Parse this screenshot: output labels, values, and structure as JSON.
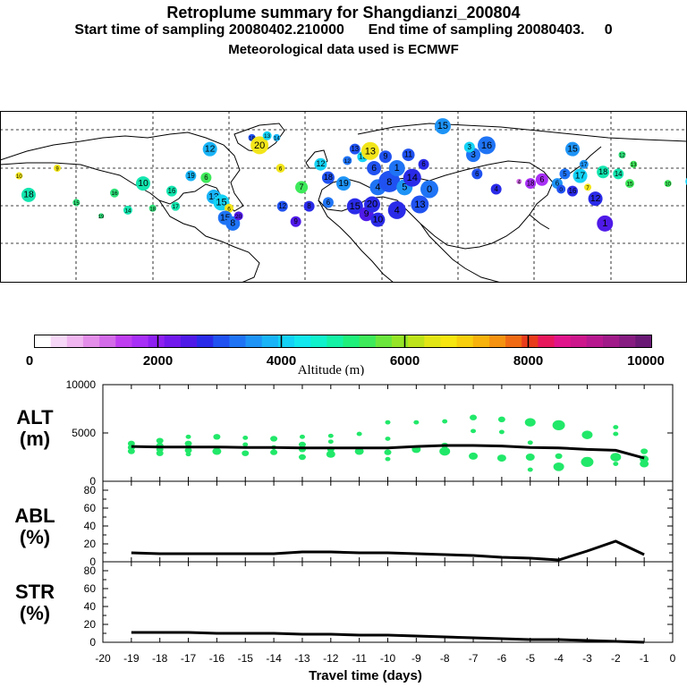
{
  "header": {
    "title": "Retroplume summary for Shangdianzi_200804",
    "start_label": "Start time of sampling",
    "start_value": "20080402.210000",
    "end_label": "End time of sampling",
    "end_value": "20080403.",
    "end_hour": "0",
    "met_label": "Meteorological data used is ECMWF"
  },
  "colorbar": {
    "title": "Altitude (m)",
    "ticks": [
      "0",
      "2000",
      "4000",
      "6000",
      "8000",
      "10000"
    ],
    "colors": [
      "#ffffff",
      "#f7d7f7",
      "#efb6ef",
      "#e38ee8",
      "#d36ae8",
      "#bf3ff0",
      "#a82ff5",
      "#8e20f2",
      "#7219ee",
      "#4f1ae8",
      "#2a2be8",
      "#1f52f0",
      "#1f74f5",
      "#1f94f7",
      "#18b4f7",
      "#14d2f5",
      "#12e8ee",
      "#0ff2cc",
      "#14f2a6",
      "#1ff07c",
      "#3ee95a",
      "#6ae63c",
      "#96e427",
      "#bfe31a",
      "#e2e516",
      "#f7e610",
      "#f7cf0c",
      "#f7b30c",
      "#f5920f",
      "#f06a14",
      "#e83c1c",
      "#e8185c",
      "#e0158c",
      "#cc168c",
      "#b8188f",
      "#a01a8a",
      "#861c82",
      "#6a1a74"
    ]
  },
  "map_data": {
    "points": [
      {
        "lon": -170,
        "lat": 56,
        "v": "10",
        "c": "#f2e61a",
        "r": 4
      },
      {
        "lon": -165,
        "lat": 46,
        "v": "18",
        "c": "#14e6b0",
        "r": 8
      },
      {
        "lon": -150,
        "lat": 60,
        "v": "9",
        "c": "#f2e61a",
        "r": 4
      },
      {
        "lon": -140,
        "lat": 42,
        "v": "15",
        "c": "#2ee37a",
        "r": 4
      },
      {
        "lon": -127,
        "lat": 35,
        "v": "19",
        "c": "#2ee37a",
        "r": 3
      },
      {
        "lon": -120,
        "lat": 47,
        "v": "16",
        "c": "#2ee37a",
        "r": 5
      },
      {
        "lon": -113,
        "lat": 38,
        "v": "14",
        "c": "#14e6b0",
        "r": 5
      },
      {
        "lon": -105,
        "lat": 52,
        "v": "10",
        "c": "#14e6b0",
        "r": 8
      },
      {
        "lon": -100,
        "lat": 39,
        "v": "18",
        "c": "#2ee37a",
        "r": 4
      },
      {
        "lon": -90,
        "lat": 48,
        "v": "16",
        "c": "#14e6b0",
        "r": 6
      },
      {
        "lon": -88,
        "lat": 40,
        "v": "17",
        "c": "#14e6b0",
        "r": 5
      },
      {
        "lon": -80,
        "lat": 56,
        "v": "19",
        "c": "#18b4f7",
        "r": 6
      },
      {
        "lon": -72,
        "lat": 55,
        "v": "6",
        "c": "#3ee95a",
        "r": 6
      },
      {
        "lon": -70,
        "lat": 70,
        "v": "12",
        "c": "#18b4f7",
        "r": 8
      },
      {
        "lon": -68,
        "lat": 45,
        "v": "13",
        "c": "#18b4f7",
        "r": 8
      },
      {
        "lon": -64,
        "lat": 42,
        "v": "15",
        "c": "#14d2f5",
        "r": 9
      },
      {
        "lon": -60,
        "lat": 39,
        "v": "6",
        "c": "#f2e61a",
        "r": 5
      },
      {
        "lon": -62,
        "lat": 34,
        "v": "15",
        "c": "#1f74f5",
        "r": 8
      },
      {
        "lon": -58,
        "lat": 31,
        "v": "8",
        "c": "#1f74f5",
        "r": 8
      },
      {
        "lon": -55,
        "lat": 35,
        "v": "20",
        "c": "#4f1ae8",
        "r": 5
      },
      {
        "lon": -48,
        "lat": 76,
        "v": "18",
        "c": "#1f52f0",
        "r": 4
      },
      {
        "lon": -44,
        "lat": 72,
        "v": "20",
        "c": "#f2e61a",
        "r": 10
      },
      {
        "lon": -40,
        "lat": 77,
        "v": "13",
        "c": "#14d2f5",
        "r": 5
      },
      {
        "lon": -35,
        "lat": 76,
        "v": "14",
        "c": "#18b4f7",
        "r": 4
      },
      {
        "lon": -33,
        "lat": 60,
        "v": "6",
        "c": "#f2e61a",
        "r": 5
      },
      {
        "lon": -32,
        "lat": 40,
        "v": "12",
        "c": "#1f52f0",
        "r": 6
      },
      {
        "lon": -25,
        "lat": 32,
        "v": "9",
        "c": "#4f1ae8",
        "r": 6
      },
      {
        "lon": -22,
        "lat": 50,
        "v": "7",
        "c": "#3ee95a",
        "r": 7
      },
      {
        "lon": -12,
        "lat": 62,
        "v": "12",
        "c": "#14d2f5",
        "r": 7
      },
      {
        "lon": -8,
        "lat": 55,
        "v": "18",
        "c": "#1f52f0",
        "r": 7
      },
      {
        "lon": -18,
        "lat": 40,
        "v": "8",
        "c": "#2a2be8",
        "r": 6
      },
      {
        "lon": -8,
        "lat": 42,
        "v": "6",
        "c": "#1f74f5",
        "r": 6
      },
      {
        "lon": 0,
        "lat": 52,
        "v": "19",
        "c": "#1f94f7",
        "r": 8
      },
      {
        "lon": 2,
        "lat": 64,
        "v": "12",
        "c": "#1f74f5",
        "r": 5
      },
      {
        "lon": 6,
        "lat": 40,
        "v": "15",
        "c": "#2a2be8",
        "r": 9
      },
      {
        "lon": 6,
        "lat": 70,
        "v": "13",
        "c": "#1f52f0",
        "r": 6
      },
      {
        "lon": 10,
        "lat": 66,
        "v": "13",
        "c": "#14d2f5",
        "r": 6
      },
      {
        "lon": 12,
        "lat": 36,
        "v": "9",
        "c": "#4f1ae8",
        "r": 8
      },
      {
        "lon": 14,
        "lat": 69,
        "v": "13",
        "c": "#f2e61a",
        "r": 10
      },
      {
        "lon": 15,
        "lat": 41,
        "v": "20",
        "c": "#2a2be8",
        "r": 9
      },
      {
        "lon": 16,
        "lat": 60,
        "v": "6",
        "c": "#1f52f0",
        "r": 8
      },
      {
        "lon": 18,
        "lat": 33,
        "v": "10",
        "c": "#2a2be8",
        "r": 8
      },
      {
        "lon": 18,
        "lat": 50,
        "v": "4",
        "c": "#1f74f5",
        "r": 9
      },
      {
        "lon": 22,
        "lat": 66,
        "v": "9",
        "c": "#1f52f0",
        "r": 7
      },
      {
        "lon": 24,
        "lat": 53,
        "v": "8",
        "c": "#1f52f0",
        "r": 12
      },
      {
        "lon": 28,
        "lat": 38,
        "v": "4",
        "c": "#2a2be8",
        "r": 10
      },
      {
        "lon": 28,
        "lat": 60,
        "v": "1",
        "c": "#1f74f5",
        "r": 9
      },
      {
        "lon": 32,
        "lat": 50,
        "v": "5",
        "c": "#1f94f7",
        "r": 9
      },
      {
        "lon": 34,
        "lat": 67,
        "v": "11",
        "c": "#1f52f0",
        "r": 7
      },
      {
        "lon": 36,
        "lat": 55,
        "v": "14",
        "c": "#2a2be8",
        "r": 10
      },
      {
        "lon": 40,
        "lat": 41,
        "v": "13",
        "c": "#1f52f0",
        "r": 10
      },
      {
        "lon": 42,
        "lat": 62,
        "v": "6",
        "c": "#2a2be8",
        "r": 6
      },
      {
        "lon": 45,
        "lat": 49,
        "v": "0",
        "c": "#1f74f5",
        "r": 10
      },
      {
        "lon": 52,
        "lat": 82,
        "v": "15",
        "c": "#1f94f7",
        "r": 9
      },
      {
        "lon": 68,
        "lat": 67,
        "v": "3",
        "c": "#1f74f5",
        "r": 8
      },
      {
        "lon": 66,
        "lat": 71,
        "v": "3",
        "c": "#14d2f5",
        "r": 6
      },
      {
        "lon": 75,
        "lat": 72,
        "v": "16",
        "c": "#1f74f5",
        "r": 10
      },
      {
        "lon": 70,
        "lat": 57,
        "v": "6",
        "c": "#1f52f0",
        "r": 6
      },
      {
        "lon": 80,
        "lat": 49,
        "v": "4",
        "c": "#2a2be8",
        "r": 6
      },
      {
        "lon": 92,
        "lat": 53,
        "v": "4",
        "c": "#d36ae8",
        "r": 3
      },
      {
        "lon": 98,
        "lat": 52,
        "v": "18",
        "c": "#a82ff5",
        "r": 6
      },
      {
        "lon": 104,
        "lat": 54,
        "v": "6",
        "c": "#a82ff5",
        "r": 7
      },
      {
        "lon": 112,
        "lat": 52,
        "v": "6",
        "c": "#1f94f7",
        "r": 6
      },
      {
        "lon": 116,
        "lat": 57,
        "v": "5",
        "c": "#1f74f5",
        "r": 6
      },
      {
        "lon": 114,
        "lat": 49,
        "v": "0",
        "c": "#1f52f0",
        "r": 5
      },
      {
        "lon": 120,
        "lat": 48,
        "v": "16",
        "c": "#2a2be8",
        "r": 6
      },
      {
        "lon": 124,
        "lat": 56,
        "v": "17",
        "c": "#14d2f5",
        "r": 8
      },
      {
        "lon": 126,
        "lat": 62,
        "v": "17",
        "c": "#1f94f7",
        "r": 5
      },
      {
        "lon": 128,
        "lat": 50,
        "v": "7",
        "c": "#f2e61a",
        "r": 4
      },
      {
        "lon": 132,
        "lat": 44,
        "v": "12",
        "c": "#2a2be8",
        "r": 8
      },
      {
        "lon": 120,
        "lat": 70,
        "v": "15",
        "c": "#1f94f7",
        "r": 8
      },
      {
        "lon": 136,
        "lat": 58,
        "v": "18",
        "c": "#14e6b0",
        "r": 7
      },
      {
        "lon": 144,
        "lat": 57,
        "v": "14",
        "c": "#14e6b0",
        "r": 6
      },
      {
        "lon": 150,
        "lat": 52,
        "v": "15",
        "c": "#3ee95a",
        "r": 5
      },
      {
        "lon": 152,
        "lat": 62,
        "v": "13",
        "c": "#3ee95a",
        "r": 4
      },
      {
        "lon": 146,
        "lat": 67,
        "v": "12",
        "c": "#2ee37a",
        "r": 4
      },
      {
        "lon": 170,
        "lat": 52,
        "v": "10",
        "c": "#3ee95a",
        "r": 4
      },
      {
        "lon": 182,
        "lat": 53,
        "v": "19",
        "c": "#14d2f5",
        "r": 6
      },
      {
        "lon": 187,
        "lat": 76,
        "v": "7",
        "c": "#f2e61a",
        "r": 5
      },
      {
        "lon": 207,
        "lat": 84,
        "v": "6",
        "c": "#f2e61a",
        "r": 5
      },
      {
        "lon": 210,
        "lat": 67,
        "v": "8",
        "c": "#f2e61a",
        "r": 3
      },
      {
        "lon": 137,
        "lat": 31,
        "v": "1",
        "c": "#4f1ae8",
        "r": 9
      }
    ]
  },
  "chart_data": [
    {
      "type": "scatter+line",
      "panel": "ALT",
      "ylabel": "ALT\n(m)",
      "ylim": [
        0,
        10000
      ],
      "yticks": [
        "10000",
        "5000",
        "0"
      ],
      "xlim": [
        -20,
        0
      ],
      "line": {
        "x": [
          -19,
          -18,
          -17,
          -16,
          -15,
          -14,
          -13,
          -12,
          -11,
          -10,
          -9,
          -8,
          -7,
          -6,
          -5,
          -4,
          -3,
          -2,
          -1
        ],
        "y": [
          3600,
          3550,
          3550,
          3550,
          3500,
          3500,
          3450,
          3450,
          3450,
          3450,
          3600,
          3700,
          3700,
          3650,
          3500,
          3450,
          3300,
          3200,
          2400
        ]
      },
      "points": [
        {
          "x": -19,
          "y": 3900,
          "s": 4
        },
        {
          "x": -19,
          "y": 3500,
          "s": 4
        },
        {
          "x": -19,
          "y": 3100,
          "s": 4
        },
        {
          "x": -18,
          "y": 4200,
          "s": 4
        },
        {
          "x": -18,
          "y": 3700,
          "s": 4
        },
        {
          "x": -18,
          "y": 3300,
          "s": 4
        },
        {
          "x": -18,
          "y": 2900,
          "s": 4
        },
        {
          "x": -17,
          "y": 4600,
          "s": 3
        },
        {
          "x": -17,
          "y": 3900,
          "s": 4
        },
        {
          "x": -17,
          "y": 3200,
          "s": 4
        },
        {
          "x": -17,
          "y": 2800,
          "s": 3
        },
        {
          "x": -16,
          "y": 4600,
          "s": 4
        },
        {
          "x": -16,
          "y": 3100,
          "s": 5
        },
        {
          "x": -15,
          "y": 4500,
          "s": 3
        },
        {
          "x": -15,
          "y": 3800,
          "s": 3
        },
        {
          "x": -15,
          "y": 2900,
          "s": 4
        },
        {
          "x": -14,
          "y": 4400,
          "s": 4
        },
        {
          "x": -14,
          "y": 3500,
          "s": 3
        },
        {
          "x": -14,
          "y": 3000,
          "s": 4
        },
        {
          "x": -13,
          "y": 4600,
          "s": 3
        },
        {
          "x": -13,
          "y": 3800,
          "s": 4
        },
        {
          "x": -13,
          "y": 3300,
          "s": 4
        },
        {
          "x": -13,
          "y": 2500,
          "s": 4
        },
        {
          "x": -12,
          "y": 4700,
          "s": 3
        },
        {
          "x": -12,
          "y": 4100,
          "s": 3
        },
        {
          "x": -12,
          "y": 3300,
          "s": 4
        },
        {
          "x": -12,
          "y": 2800,
          "s": 5
        },
        {
          "x": -11,
          "y": 4900,
          "s": 3
        },
        {
          "x": -11,
          "y": 3100,
          "s": 5
        },
        {
          "x": -10,
          "y": 6100,
          "s": 3
        },
        {
          "x": -10,
          "y": 4400,
          "s": 3
        },
        {
          "x": -10,
          "y": 3000,
          "s": 4
        },
        {
          "x": -10,
          "y": 2300,
          "s": 3
        },
        {
          "x": -9,
          "y": 6100,
          "s": 3
        },
        {
          "x": -9,
          "y": 3300,
          "s": 5
        },
        {
          "x": -8,
          "y": 6200,
          "s": 3
        },
        {
          "x": -8,
          "y": 3700,
          "s": 4
        },
        {
          "x": -8,
          "y": 3100,
          "s": 6
        },
        {
          "x": -7,
          "y": 6600,
          "s": 4
        },
        {
          "x": -7,
          "y": 5200,
          "s": 3
        },
        {
          "x": -7,
          "y": 2600,
          "s": 5
        },
        {
          "x": -6,
          "y": 6400,
          "s": 4
        },
        {
          "x": -6,
          "y": 5100,
          "s": 3
        },
        {
          "x": -6,
          "y": 2400,
          "s": 5
        },
        {
          "x": -5,
          "y": 6100,
          "s": 6
        },
        {
          "x": -5,
          "y": 4000,
          "s": 3
        },
        {
          "x": -5,
          "y": 2500,
          "s": 5
        },
        {
          "x": -5,
          "y": 1200,
          "s": 3
        },
        {
          "x": -4,
          "y": 5800,
          "s": 7
        },
        {
          "x": -4,
          "y": 2600,
          "s": 4
        },
        {
          "x": -4,
          "y": 1500,
          "s": 6
        },
        {
          "x": -3,
          "y": 4800,
          "s": 6
        },
        {
          "x": -3,
          "y": 2000,
          "s": 7
        },
        {
          "x": -2,
          "y": 5600,
          "s": 3
        },
        {
          "x": -2,
          "y": 4900,
          "s": 3
        },
        {
          "x": -2,
          "y": 2500,
          "s": 6
        },
        {
          "x": -2,
          "y": 1800,
          "s": 3
        },
        {
          "x": -1,
          "y": 3100,
          "s": 4
        },
        {
          "x": -1,
          "y": 2300,
          "s": 5
        },
        {
          "x": -1,
          "y": 1800,
          "s": 5
        }
      ]
    },
    {
      "type": "line",
      "panel": "ABL",
      "ylabel": "ABL\n(%)",
      "ylim": [
        0,
        90
      ],
      "yticks": [
        "80",
        "60",
        "40",
        "20",
        "0"
      ],
      "xlim": [
        -20,
        0
      ],
      "x": [
        -19,
        -18,
        -17,
        -16,
        -15,
        -14,
        -13,
        -12,
        -11,
        -10,
        -9,
        -8,
        -7,
        -6,
        -5,
        -4,
        -3,
        -2,
        -1
      ],
      "y": [
        10,
        9,
        9,
        9,
        9,
        9,
        11,
        11,
        10,
        10,
        9,
        8,
        7,
        5,
        4,
        2,
        12,
        23,
        8
      ]
    },
    {
      "type": "line",
      "panel": "STR",
      "ylabel": "STR\n(%)",
      "ylim": [
        0,
        90
      ],
      "yticks": [
        "80",
        "60",
        "40",
        "20",
        "0"
      ],
      "xlim": [
        -20,
        0
      ],
      "x": [
        -19,
        -18,
        -17,
        -16,
        -15,
        -14,
        -13,
        -12,
        -11,
        -10,
        -9,
        -8,
        -7,
        -6,
        -5,
        -4,
        -3,
        -2,
        -1
      ],
      "y": [
        11,
        11,
        11,
        10,
        10,
        10,
        9,
        9,
        8,
        8,
        7,
        6,
        5,
        4,
        3,
        3,
        2,
        1,
        0
      ],
      "xlabel": "Travel time (days)",
      "xticks": [
        "-20",
        "-19",
        "-18",
        "-17",
        "-16",
        "-15",
        "-14",
        "-13",
        "-12",
        "-11",
        "-10",
        "-9",
        "-8",
        "-7",
        "-6",
        "-5",
        "-4",
        "-3",
        "-2",
        "-1",
        "0"
      ]
    }
  ]
}
